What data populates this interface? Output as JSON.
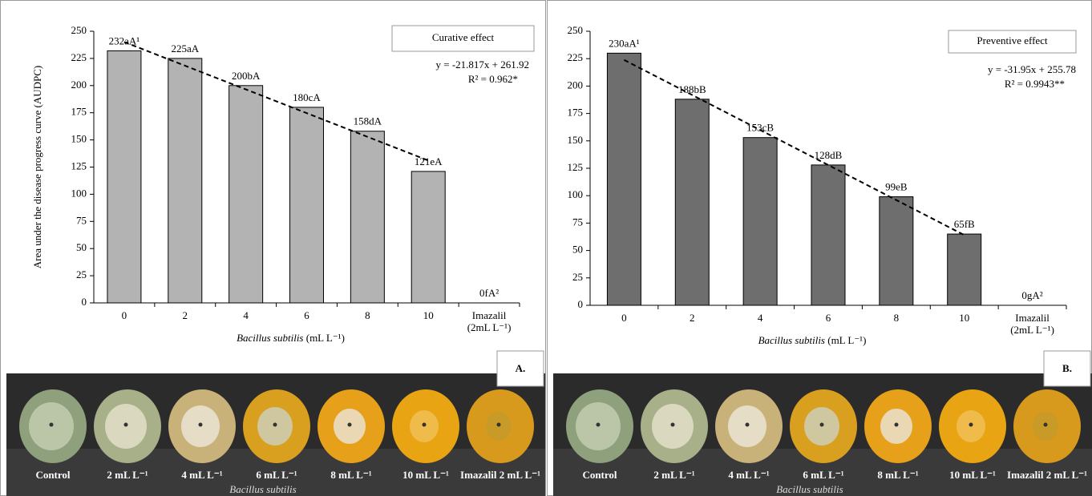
{
  "chart_data": [
    {
      "type": "bar",
      "panel": "A.",
      "legend_title": "Curative effect",
      "ylabel": "Area under the disease progress curve (AUDPC)",
      "xlabel": {
        "species": "Bacillus subtilis",
        "unit": "(mL L⁻¹)"
      },
      "categories": [
        "0",
        "2",
        "4",
        "6",
        "8",
        "10",
        "Imazalil"
      ],
      "category_note": "(2mL L⁻¹)",
      "values": [
        232,
        225,
        200,
        180,
        158,
        121,
        0
      ],
      "value_labels": [
        "232aA¹",
        "225aA",
        "200bA",
        "180cA",
        "158dA",
        "121eA",
        "0fA²"
      ],
      "color": "#b3b3b3",
      "ylim": [
        0,
        250
      ],
      "yticks": [
        0,
        25,
        50,
        75,
        100,
        125,
        150,
        175,
        200,
        225,
        250
      ],
      "trendline": {
        "equation": "y = -21.817x + 261.92",
        "r2": "R² = 0.962*",
        "slope": -21.817,
        "intercept": 261.92
      }
    },
    {
      "type": "bar",
      "panel": "B.",
      "legend_title": "Preventive effect",
      "xlabel": {
        "species": "Bacillus subtilis",
        "unit": "(mL L⁻¹)"
      },
      "categories": [
        "0",
        "2",
        "4",
        "6",
        "8",
        "10",
        "Imazalil"
      ],
      "category_note": "(2mL L⁻¹)",
      "values": [
        230,
        188,
        153,
        128,
        99,
        65,
        0
      ],
      "value_labels": [
        "230aA¹",
        "188bB",
        "153cB",
        "128dB",
        "99eB",
        "65fB",
        "0gA²"
      ],
      "color": "#6e6e6e",
      "ylim": [
        0,
        250
      ],
      "yticks": [
        0,
        25,
        50,
        75,
        100,
        125,
        150,
        175,
        200,
        225,
        250
      ],
      "trendline": {
        "equation": "y = -31.95x + 255.78",
        "r2": "R² = 0.9943**",
        "slope": -31.95,
        "intercept": 255.78
      }
    }
  ],
  "photos": [
    {
      "labels": [
        "Control",
        "2 mL L⁻¹",
        "4 mL L⁻¹",
        "6 mL L⁻¹",
        "8 mL L⁻¹",
        "10 mL L⁻¹",
        "Imazalil 2 mL L⁻¹"
      ],
      "caption": "Bacillus subtilis"
    },
    {
      "labels": [
        "Control",
        "2 mL L⁻¹",
        "4 mL L⁻¹",
        "6 mL L⁻¹",
        "8 mL L⁻¹",
        "10 mL L⁻¹",
        "Imazalil 2 mL L⁻¹"
      ],
      "caption": "Bacillus subtilis"
    }
  ]
}
